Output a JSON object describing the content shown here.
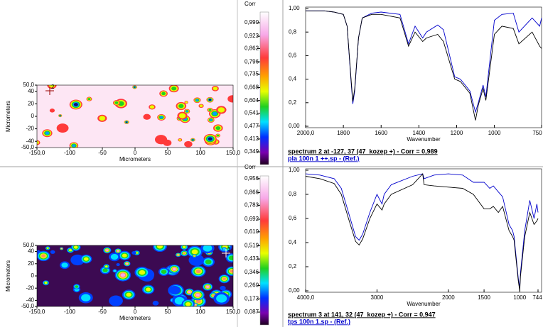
{
  "panels": [
    {
      "map": {
        "x_label": "Micrometers",
        "y_label": "Micrometers",
        "marker_label": "2",
        "xlim": [
          -150,
          150
        ],
        "ylim": [
          -50,
          50
        ],
        "xticks": [
          {
            "value": -150,
            "label": "-150,0"
          },
          -100,
          -50,
          0,
          50,
          100,
          {
            "value": 150,
            "label": "150,0"
          }
        ],
        "yticks": [
          {
            "value": 50,
            "label": "50,0"
          },
          40,
          20,
          0,
          -20,
          -40,
          {
            "value": -50,
            "label": "-50,0"
          }
        ]
      },
      "colorbar": {
        "title": "Corr",
        "ylim": [
          0.286,
          1.043
        ],
        "ticks": [
          {
            "value": 0.99,
            "label": "0,990"
          },
          {
            "value": 0.923,
            "label": "0,923"
          },
          {
            "value": 0.862,
            "label": "0,862"
          },
          {
            "value": 0.796,
            "label": "0,796"
          },
          {
            "value": 0.735,
            "label": "0,735"
          },
          {
            "value": 0.668,
            "label": "0,668"
          },
          {
            "value": 0.604,
            "label": "0,604"
          },
          {
            "value": 0.541,
            "label": "0,541"
          },
          {
            "value": 0.477,
            "label": "0,477"
          },
          {
            "value": 0.413,
            "label": "0,413"
          },
          {
            "value": 0.349,
            "label": "0,349"
          }
        ]
      },
      "spectrum": {
        "type": "line",
        "x_label": "Wavenumber",
        "xlim": [
          2000,
          750
        ],
        "ylim": [
          0,
          1
        ],
        "xticks": [
          {
            "value": 2000,
            "label": "2000,0"
          },
          1800,
          1600,
          1400,
          1200,
          1000,
          750
        ],
        "yticks": [
          {
            "value": 1,
            "label": "1,00"
          },
          {
            "value": 0.8,
            "label": "0,8"
          },
          {
            "value": 0.6,
            "label": "0,6"
          },
          {
            "value": 0.4,
            "label": "0,4"
          },
          {
            "value": 0.2,
            "label": "0,2"
          },
          {
            "value": 0,
            "label": "0,00"
          }
        ],
        "x": [
          2000,
          1950,
          1900,
          1850,
          1800,
          1780,
          1760,
          1750,
          1740,
          1720,
          1700,
          1650,
          1600,
          1500,
          1455,
          1420,
          1380,
          1360,
          1300,
          1270,
          1210,
          1180,
          1130,
          1100,
          1085,
          1060,
          1045,
          1000,
          960,
          900,
          870,
          800,
          760,
          750
        ],
        "series": [
          {
            "color": "#0000cc",
            "values": [
              0.98,
              0.98,
              0.98,
              0.97,
              0.95,
              0.85,
              0.4,
              0.19,
              0.3,
              0.75,
              0.92,
              0.96,
              0.97,
              0.95,
              0.7,
              0.85,
              0.75,
              0.8,
              0.86,
              0.82,
              0.42,
              0.4,
              0.3,
              0.12,
              0.2,
              0.35,
              0.25,
              0.9,
              0.95,
              0.96,
              0.8,
              0.92,
              0.85,
              0.92
            ]
          },
          {
            "color": "#000000",
            "values": [
              0.98,
              0.98,
              0.98,
              0.97,
              0.95,
              0.85,
              0.42,
              0.21,
              0.32,
              0.75,
              0.92,
              0.95,
              0.95,
              0.92,
              0.68,
              0.8,
              0.72,
              0.75,
              0.78,
              0.72,
              0.4,
              0.38,
              0.28,
              0.05,
              0.18,
              0.32,
              0.22,
              0.78,
              0.85,
              0.83,
              0.7,
              0.8,
              0.68,
              0.66
            ]
          }
        ]
      },
      "caption": "spectrum 2 at -127, 37 (47  kozep +) - Corr = 0,989",
      "reference": "pla 100n 1 ++.sp - (Ref.)"
    },
    {
      "map": {
        "x_label": "Micrometers",
        "y_label": "Micrometers",
        "marker_label": "3",
        "xlim": [
          -150,
          150
        ],
        "ylim": [
          -50,
          50
        ],
        "xticks": [
          {
            "value": -150,
            "label": "-150,0"
          },
          -100,
          -50,
          0,
          50,
          100,
          {
            "value": 150,
            "label": "150,0"
          }
        ],
        "yticks": [
          {
            "value": 50,
            "label": "50,0"
          },
          40,
          20,
          0,
          -20,
          -40,
          {
            "value": -50,
            "label": "-50,0"
          }
        ]
      },
      "colorbar": {
        "title": "Corr",
        "ylim": [
          0.004,
          0.974
        ],
        "ticks": [
          {
            "value": 0.956,
            "label": "0,956"
          },
          {
            "value": 0.866,
            "label": "0,866"
          },
          {
            "value": 0.783,
            "label": "0,783"
          },
          {
            "value": 0.692,
            "label": "0,692"
          },
          {
            "value": 0.61,
            "label": "0,610"
          },
          {
            "value": 0.519,
            "label": "0,519"
          },
          {
            "value": 0.433,
            "label": "0,433"
          },
          {
            "value": 0.346,
            "label": "0,346"
          },
          {
            "value": 0.26,
            "label": "0,260"
          },
          {
            "value": 0.173,
            "label": "0,173"
          },
          {
            "value": 0.087,
            "label": "0,087"
          }
        ]
      },
      "spectrum": {
        "type": "line",
        "x_label": "Wavenumber",
        "xlim": [
          4000,
          744
        ],
        "ylim": [
          0,
          1
        ],
        "xticks": [
          {
            "value": 4000,
            "label": "4000,0"
          },
          3000,
          2000,
          1500,
          1000,
          744
        ],
        "yticks": [
          {
            "value": 1,
            "label": "1,00"
          },
          {
            "value": 0.8,
            "label": "0,8"
          },
          {
            "value": 0.6,
            "label": "0,6"
          },
          {
            "value": 0.4,
            "label": "0,4"
          },
          {
            "value": 0.2,
            "label": "0,2"
          },
          {
            "value": 0,
            "label": "0,00"
          }
        ],
        "x": [
          4000,
          3800,
          3600,
          3500,
          3400,
          3300,
          3250,
          3200,
          3100,
          3000,
          2930,
          2900,
          2800,
          2500,
          2360,
          2340,
          2200,
          2000,
          1800,
          1650,
          1500,
          1420,
          1370,
          1300,
          1240,
          1150,
          1100,
          1080,
          1020,
          1000,
          990,
          930,
          860,
          800,
          760,
          744
        ],
        "series": [
          {
            "color": "#0000cc",
            "values": [
              0.97,
              0.96,
              0.93,
              0.85,
              0.65,
              0.45,
              0.42,
              0.47,
              0.65,
              0.8,
              0.72,
              0.8,
              0.88,
              0.95,
              0.97,
              0.93,
              0.96,
              0.97,
              0.96,
              0.9,
              0.9,
              0.85,
              0.87,
              0.82,
              0.78,
              0.55,
              0.5,
              0.45,
              0.1,
              0.02,
              0.15,
              0.5,
              0.75,
              0.6,
              0.72,
              0.65
            ]
          },
          {
            "color": "#000000",
            "values": [
              0.95,
              0.93,
              0.89,
              0.8,
              0.6,
              0.41,
              0.38,
              0.43,
              0.6,
              0.72,
              0.67,
              0.72,
              0.8,
              0.88,
              0.97,
              0.88,
              0.87,
              0.86,
              0.85,
              0.8,
              0.68,
              0.68,
              0.7,
              0.65,
              0.7,
              0.5,
              0.45,
              0.42,
              0.08,
              0,
              0.12,
              0.45,
              0.65,
              0.55,
              0.58,
              0.6
            ]
          }
        ]
      },
      "caption": "spectrum 3 at 141, 32 (47  kozep +) - Corr = 0,947",
      "reference": "tps 100n 1.sp - (Ref.)"
    }
  ]
}
